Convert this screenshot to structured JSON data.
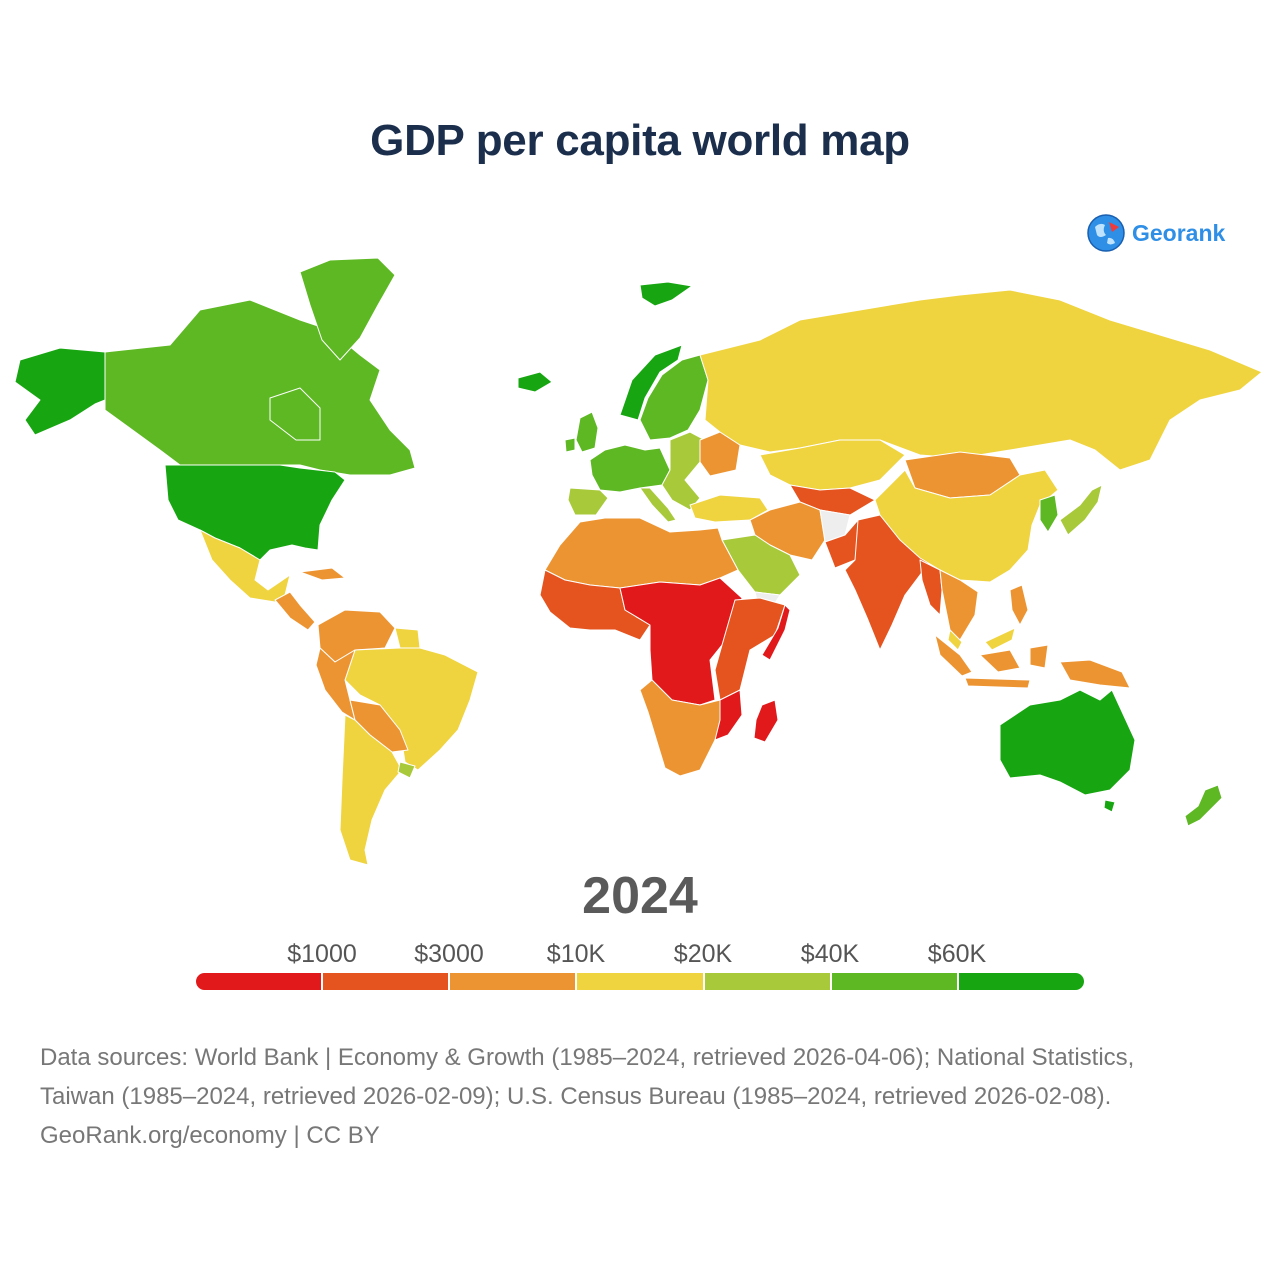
{
  "title": "GDP per capita world map",
  "logo": {
    "text": "Georank",
    "icon": "globe-icon"
  },
  "year": "2024",
  "legend": {
    "labels": [
      "$1000",
      "$3000",
      "$10K",
      "$20K",
      "$40K",
      "$60K"
    ],
    "colors": [
      "#e1191b",
      "#e5531f",
      "#ed9432",
      "#efd33f",
      "#a8c93a",
      "#5db823",
      "#17a611"
    ]
  },
  "footer": {
    "line1": "Data sources: World Bank | Economy & Growth (1985–2024, retrieved 2026-04-06); National Statistics,",
    "line2": "Taiwan (1985–2024, retrieved 2026-02-09); U.S. Census Bureau (1985–2024, retrieved 2026-02-08).",
    "line3": "GeoRank.org/economy | CC BY"
  },
  "map": {
    "regions": [
      {
        "name": "alaska",
        "color": "#17a611"
      },
      {
        "name": "canada",
        "color": "#5db823"
      },
      {
        "name": "greenland",
        "color": "#5db823"
      },
      {
        "name": "usa",
        "color": "#17a611"
      },
      {
        "name": "mexico",
        "color": "#efd33f"
      },
      {
        "name": "central-america",
        "color": "#ed9432"
      },
      {
        "name": "caribbean-cuba",
        "color": "#ed9432"
      },
      {
        "name": "colombia-venezuela",
        "color": "#ed9432"
      },
      {
        "name": "guyana",
        "color": "#efd33f"
      },
      {
        "name": "brazil",
        "color": "#efd33f"
      },
      {
        "name": "peru-ecuador",
        "color": "#ed9432"
      },
      {
        "name": "bolivia-paraguay",
        "color": "#ed9432"
      },
      {
        "name": "chile-argentina",
        "color": "#efd33f"
      },
      {
        "name": "uruguay",
        "color": "#a8c93a"
      },
      {
        "name": "iceland",
        "color": "#17a611"
      },
      {
        "name": "svalbard",
        "color": "#17a611"
      },
      {
        "name": "norway",
        "color": "#17a611"
      },
      {
        "name": "sweden-finland",
        "color": "#5db823"
      },
      {
        "name": "uk-ireland",
        "color": "#5db823"
      },
      {
        "name": "western-europe",
        "color": "#5db823"
      },
      {
        "name": "iberia",
        "color": "#a8c93a"
      },
      {
        "name": "italy",
        "color": "#a8c93a"
      },
      {
        "name": "eastern-europe",
        "color": "#a8c93a"
      },
      {
        "name": "ukraine",
        "color": "#ed9432"
      },
      {
        "name": "turkey",
        "color": "#efd33f"
      },
      {
        "name": "russia",
        "color": "#efd33f"
      },
      {
        "name": "kazakhstan",
        "color": "#efd33f"
      },
      {
        "name": "central-asia",
        "color": "#e5531f"
      },
      {
        "name": "iran-iraq",
        "color": "#ed9432"
      },
      {
        "name": "afghanistan",
        "color": "#eeeeee"
      },
      {
        "name": "pakistan",
        "color": "#e5531f"
      },
      {
        "name": "arabia",
        "color": "#a8c93a"
      },
      {
        "name": "yemen",
        "color": "#eeeeee"
      },
      {
        "name": "india",
        "color": "#e5531f"
      },
      {
        "name": "mongolia",
        "color": "#ed9432"
      },
      {
        "name": "china",
        "color": "#efd33f"
      },
      {
        "name": "korea",
        "color": "#5db823"
      },
      {
        "name": "japan",
        "color": "#a8c93a"
      },
      {
        "name": "southeast-asia",
        "color": "#ed9432"
      },
      {
        "name": "myanmar",
        "color": "#e5531f"
      },
      {
        "name": "indonesia",
        "color": "#ed9432"
      },
      {
        "name": "malaysia",
        "color": "#efd33f"
      },
      {
        "name": "philippines",
        "color": "#ed9432"
      },
      {
        "name": "north-africa",
        "color": "#ed9432"
      },
      {
        "name": "west-africa",
        "color": "#e5531f"
      },
      {
        "name": "sahel-central-africa",
        "color": "#e1191b"
      },
      {
        "name": "east-africa",
        "color": "#e5531f"
      },
      {
        "name": "somalia",
        "color": "#e1191b"
      },
      {
        "name": "southern-africa",
        "color": "#ed9432"
      },
      {
        "name": "mozambique",
        "color": "#e1191b"
      },
      {
        "name": "madagascar",
        "color": "#e1191b"
      },
      {
        "name": "australia",
        "color": "#17a611"
      },
      {
        "name": "new-zealand",
        "color": "#5db823"
      },
      {
        "name": "papua-new-guinea",
        "color": "#ed9432"
      }
    ]
  }
}
